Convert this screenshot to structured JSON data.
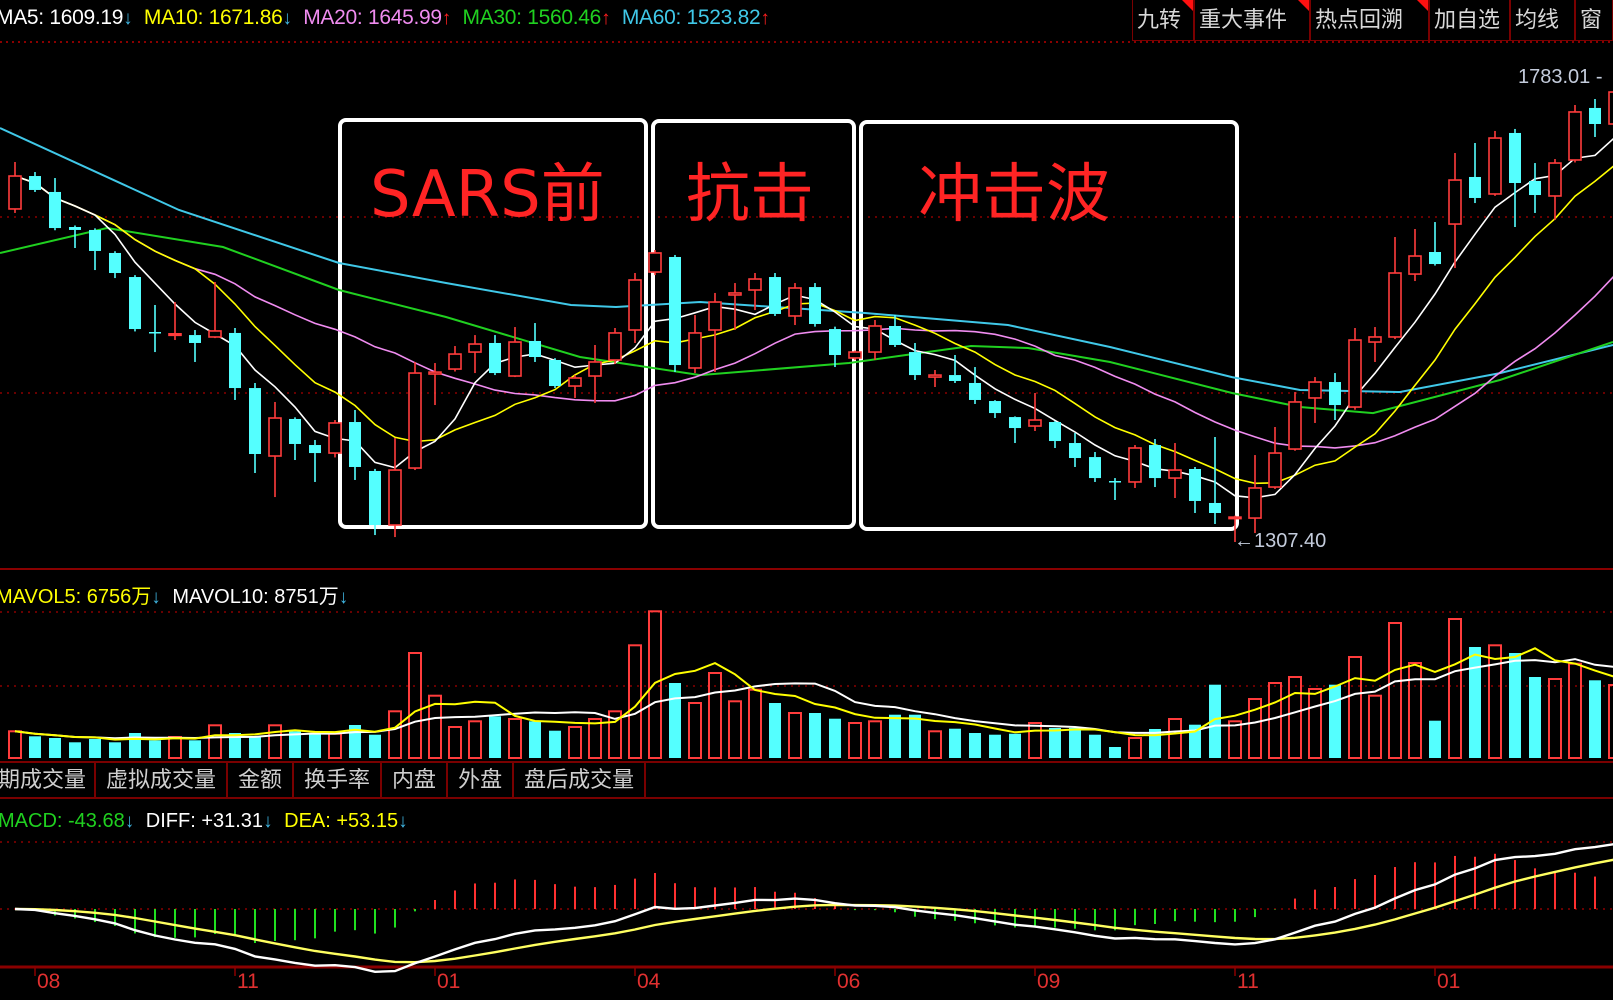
{
  "header": {
    "indicators": [
      {
        "label": "MA5: 1609.19",
        "arrow": "↓",
        "color": "#ffffff",
        "arrow_color": "#3fb4e0"
      },
      {
        "label": "MA10: 1671.86",
        "arrow": "↓",
        "color": "#ffff00",
        "arrow_color": "#3fb4e0"
      },
      {
        "label": "MA20: 1645.99",
        "arrow": "↑",
        "color": "#f08cf0",
        "arrow_color": "#ff2020"
      },
      {
        "label": "MA30: 1560.46",
        "arrow": "↑",
        "color": "#20d020",
        "arrow_color": "#ff2020"
      },
      {
        "label": "MA60: 1523.82",
        "arrow": "↑",
        "color": "#40c8e8",
        "arrow_color": "#ff2020"
      }
    ],
    "buttons": [
      {
        "label": "九转",
        "flag": true
      },
      {
        "label": "重大事件",
        "flag": true
      },
      {
        "label": "热点回溯",
        "flag": true
      },
      {
        "label": "加自选",
        "flag": false
      },
      {
        "label": "均线",
        "flag": false
      },
      {
        "label": "窗",
        "flag": false
      }
    ]
  },
  "annotations": [
    {
      "label": "SARS前"
    },
    {
      "label": "抗击"
    },
    {
      "label": "冲击波"
    }
  ],
  "price_labels": {
    "high": "1783.01",
    "low": "1307.40",
    "low_arrow": "←"
  },
  "volume_panel": {
    "mavol5": "MAVOL5: 6756万",
    "mavol5_arrow": "↓",
    "mavol10": "MAVOL10: 8751万",
    "mavol10_arrow": "↓",
    "tabs": [
      "期成交量",
      "虚拟成交量",
      "金额",
      "换手率",
      "内盘",
      "外盘",
      "盘后成交量"
    ]
  },
  "macd_panel": {
    "macd": "MACD: -43.68",
    "macd_arrow": "↓",
    "diff": "DIFF: +31.31",
    "diff_arrow": "↓",
    "dea": "DEA: +53.15",
    "dea_arrow": "↓"
  },
  "colors": {
    "up": "#ff3c3c",
    "down": "#54ffff",
    "grid": "#8a0000",
    "ma5": "#ffffff",
    "ma10": "#ffff00",
    "ma20": "#f08cf0",
    "ma30": "#20d020",
    "ma60": "#40c8e8",
    "annotation": "#ff2424",
    "axis_label": "#e03030"
  },
  "chart_data": {
    "type": "candlestick",
    "price_range": [
      1307.4,
      1783.01
    ],
    "ohlc": [
      [
        1656.3,
        1705.5,
        1652.1,
        1690.8
      ],
      [
        1690.8,
        1695.0,
        1674.1,
        1676.2
      ],
      [
        1674.1,
        1688.7,
        1634.0,
        1636.3
      ],
      [
        1637.4,
        1639.0,
        1615.4,
        1634.3
      ],
      [
        1634.3,
        1636.0,
        1592.3,
        1612.3
      ],
      [
        1610.2,
        1612.0,
        1583.9,
        1589.2
      ],
      [
        1585.0,
        1587.0,
        1528.0,
        1530.5
      ],
      [
        1527.4,
        1555.7,
        1506.4,
        1526.4
      ],
      [
        1524.5,
        1558.8,
        1519.0,
        1525.5
      ],
      [
        1524.2,
        1529.5,
        1496.0,
        1515.9
      ],
      [
        1522.2,
        1579.8,
        1521.0,
        1528.5
      ],
      [
        1526.4,
        1531.6,
        1456.2,
        1468.7
      ],
      [
        1468.7,
        1474.0,
        1379.7,
        1399.6
      ],
      [
        1397.5,
        1454.1,
        1354.5,
        1437.3
      ],
      [
        1436.3,
        1438.0,
        1393.3,
        1410.1
      ],
      [
        1409.0,
        1414.3,
        1370.3,
        1400.6
      ],
      [
        1400.6,
        1435.2,
        1396.0,
        1432.1
      ],
      [
        1433.1,
        1445.7,
        1372.4,
        1386.0
      ],
      [
        1381.8,
        1384.0,
        1314.7,
        1325.2
      ],
      [
        1325.2,
        1416.3,
        1312.6,
        1382.8
      ],
      [
        1384.9,
        1496.0,
        1382.8,
        1484.4
      ],
      [
        1483.4,
        1494.9,
        1450.9,
        1485.4
      ],
      [
        1488.6,
        1512.7,
        1486.0,
        1504.3
      ],
      [
        1506.4,
        1524.2,
        1484.4,
        1514.8
      ],
      [
        1515.9,
        1524.2,
        1482.3,
        1484.4
      ],
      [
        1481.3,
        1532.6,
        1480.2,
        1516.9
      ],
      [
        1518.0,
        1536.8,
        1496.0,
        1501.2
      ],
      [
        1498.1,
        1500.0,
        1468.7,
        1470.8
      ],
      [
        1470.8,
        1482.3,
        1458.3,
        1479.2
      ],
      [
        1481.3,
        1513.8,
        1453.0,
        1496.0
      ],
      [
        1498.1,
        1531.6,
        1493.9,
        1526.4
      ],
      [
        1529.5,
        1589.2,
        1515.9,
        1581.9
      ],
      [
        1590.2,
        1613.3,
        1587.0,
        1610.2
      ],
      [
        1606.0,
        1608.1,
        1485.5,
        1492.8
      ],
      [
        1489.7,
        1545.2,
        1484.4,
        1526.4
      ],
      [
        1529.5,
        1568.3,
        1485.5,
        1558.8
      ],
      [
        1566.2,
        1578.7,
        1529.5,
        1568.3
      ],
      [
        1571.4,
        1589.2,
        1550.4,
        1582.9
      ],
      [
        1585.0,
        1589.2,
        1544.2,
        1546.3
      ],
      [
        1544.2,
        1578.7,
        1534.7,
        1573.5
      ],
      [
        1574.5,
        1578.7,
        1533.0,
        1535.8
      ],
      [
        1530.5,
        1533.0,
        1490.7,
        1503.3
      ],
      [
        1500.2,
        1508.0,
        1498.0,
        1506.4
      ],
      [
        1506.4,
        1540.0,
        1498.1,
        1533.7
      ],
      [
        1533.7,
        1545.2,
        1511.7,
        1513.8
      ],
      [
        1506.4,
        1515.9,
        1477.1,
        1482.3
      ],
      [
        1480.2,
        1487.6,
        1469.8,
        1482.3
      ],
      [
        1482.3,
        1503.3,
        1474.0,
        1476.1
      ],
      [
        1474.0,
        1490.7,
        1452.0,
        1456.2
      ],
      [
        1455.1,
        1456.0,
        1437.3,
        1442.5
      ],
      [
        1438.3,
        1439.0,
        1411.1,
        1426.8
      ],
      [
        1428.9,
        1463.5,
        1423.7,
        1435.2
      ],
      [
        1433.1,
        1434.0,
        1405.9,
        1413.2
      ],
      [
        1411.1,
        1421.6,
        1386.0,
        1395.4
      ],
      [
        1396.4,
        1401.7,
        1370.3,
        1374.4
      ],
      [
        1371.3,
        1374.4,
        1351.4,
        1370.3
      ],
      [
        1370.3,
        1409.0,
        1364.0,
        1405.9
      ],
      [
        1409.0,
        1415.3,
        1365.0,
        1374.4
      ],
      [
        1374.4,
        1411.1,
        1353.5,
        1382.8
      ],
      [
        1383.9,
        1386.0,
        1337.8,
        1350.4
      ],
      [
        1348.3,
        1417.4,
        1326.3,
        1337.8
      ],
      [
        1332.5,
        1335.0,
        1307.4,
        1333.5
      ],
      [
        1332.5,
        1398.5,
        1316.8,
        1364.0
      ],
      [
        1365.0,
        1427.9,
        1363.0,
        1400.6
      ],
      [
        1404.8,
        1464.5,
        1403.0,
        1454.1
      ],
      [
        1458.3,
        1480.2,
        1432.1,
        1475.0
      ],
      [
        1475.0,
        1484.4,
        1435.2,
        1450.9
      ],
      [
        1448.8,
        1531.6,
        1446.0,
        1519.0
      ],
      [
        1516.9,
        1532.6,
        1496.0,
        1522.2
      ],
      [
        1522.2,
        1626.9,
        1520.0,
        1589.2
      ],
      [
        1588.1,
        1635.3,
        1580.8,
        1607.0
      ],
      [
        1611.2,
        1642.6,
        1597.0,
        1598.6
      ],
      [
        1640.5,
        1714.9,
        1594.4,
        1686.6
      ],
      [
        1689.8,
        1725.4,
        1662.5,
        1667.8
      ],
      [
        1672.0,
        1738.0,
        1670.0,
        1730.6
      ],
      [
        1735.9,
        1740.1,
        1637.4,
        1683.5
      ],
      [
        1685.6,
        1704.4,
        1652.1,
        1670.9
      ],
      [
        1669.9,
        1708.6,
        1644.7,
        1704.4
      ],
      [
        1707.6,
        1765.2,
        1705.0,
        1757.9
      ],
      [
        1762.1,
        1771.5,
        1731.7,
        1745.3
      ],
      [
        1745.3,
        1783.01,
        1743.0,
        1778.8
      ]
    ],
    "volume_wan": [
      2590,
      2105,
      1940,
      1523,
      1843,
      1523,
      2425,
      1717,
      2037,
      1717,
      3172,
      2425,
      2105,
      3172,
      2590,
      2357,
      2357,
      3201,
      2260,
      4530,
      10185,
      6043,
      3007,
      3560,
      4045,
      3783,
      3560,
      2648,
      3007,
      3783,
      4530,
      10932,
      14230,
      7275,
      5335,
      8245,
      5500,
      6625,
      5335,
      4365,
      4365,
      3812,
      3395,
      3560,
      4200,
      4200,
      2590,
      2842,
      2425,
      2260,
      2357,
      3395,
      2910,
      2910,
      2260,
      1067,
      1940,
      2813,
      3783,
      3230,
      7110,
      3560,
      5723,
      7275,
      7857,
      6693,
      7110,
      9797,
      6043,
      13095,
      9215,
      3618,
      13483,
      10767,
      10932,
      10185,
      7857,
      7663,
      9147,
      7537,
      7081
    ],
    "ma30_points": [
      [
        0.25,
        1610.2
      ],
      [
        5.6,
        1636.3
      ],
      [
        11.4,
        1616.4
      ],
      [
        17.2,
        1571.4
      ],
      [
        22.55,
        1543.1
      ],
      [
        29.25,
        1501.2
      ],
      [
        35.25,
        1482.3
      ],
      [
        42.7,
        1494.9
      ],
      [
        45.55,
        1503.3
      ],
      [
        48.8,
        1512.7
      ],
      [
        51.65,
        1510.6
      ],
      [
        55.75,
        1496.0
      ],
      [
        61.85,
        1463.5
      ],
      [
        65.25,
        1448.8
      ],
      [
        68.9,
        1442.5
      ],
      [
        75.25,
        1477.1
      ],
      [
        80.9,
        1516.9
      ]
    ],
    "ma60_points": [
      [
        0.25,
        1741.1
      ],
      [
        9.2,
        1655.2
      ],
      [
        17.2,
        1599.7
      ],
      [
        22.55,
        1578.7
      ],
      [
        28.8,
        1555.7
      ],
      [
        31.05,
        1553.6
      ],
      [
        35.25,
        1558.8
      ],
      [
        43.5,
        1547.3
      ],
      [
        50.65,
        1534.7
      ],
      [
        55.75,
        1511.7
      ],
      [
        61.85,
        1480.2
      ],
      [
        65.25,
        1466.6
      ],
      [
        70.25,
        1464.5
      ],
      [
        75.25,
        1484.4
      ],
      [
        80.9,
        1513.8
      ]
    ],
    "x_ticks": [
      {
        "bar": 2,
        "label": "08"
      },
      {
        "bar": 12,
        "label": "11"
      },
      {
        "bar": 22,
        "label": "01"
      },
      {
        "bar": 32,
        "label": "04"
      },
      {
        "bar": 42,
        "label": "06"
      },
      {
        "bar": 52,
        "label": "09"
      },
      {
        "bar": 62,
        "label": "11"
      },
      {
        "bar": 72,
        "label": "01"
      }
    ],
    "grid": true
  }
}
